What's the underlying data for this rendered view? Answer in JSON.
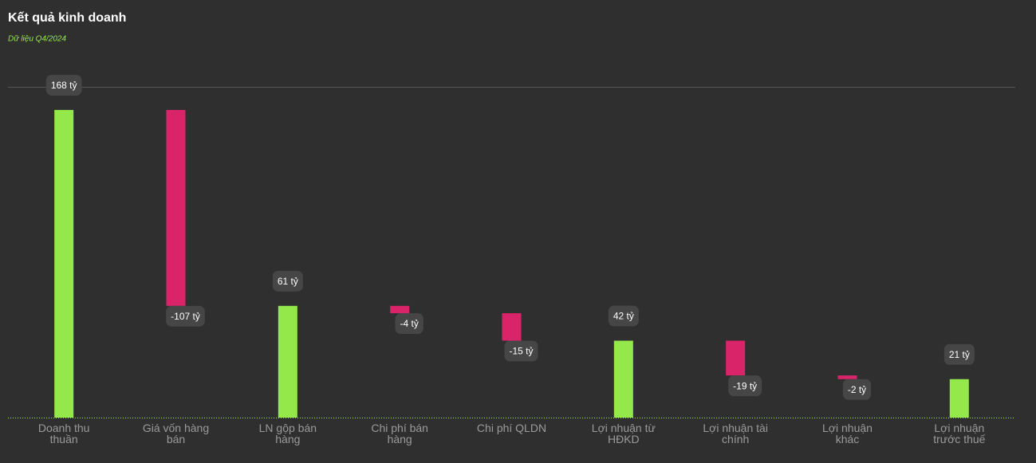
{
  "chart_data": {
    "type": "waterfall",
    "title": "Kết quả kinh doanh",
    "subtitle": "Dữ liệu Q4/2024",
    "categories": [
      "Doanh thu\nthuần",
      "Giá vốn hàng\nbán",
      "LN gộp bán\nhàng",
      "Chi phí bán\nhàng",
      "Chi phí QLDN",
      "Lợi nhuận từ\nHĐKD",
      "Lợi nhuận tài\nchính",
      "Lợi nhuận\nkhác",
      "Lợi nhuận\ntrước thuế"
    ],
    "measure": [
      "total",
      "relative",
      "total",
      "relative",
      "relative",
      "total",
      "relative",
      "relative",
      "total"
    ],
    "values": [
      168,
      -107,
      61,
      -4,
      -15,
      42,
      -19,
      -2,
      21
    ],
    "value_labels": [
      "168 tỷ",
      "-107 tỷ",
      "61 tỷ",
      "-4 tỷ",
      "-15 tỷ",
      "42 tỷ",
      "-19 tỷ",
      "-2 tỷ",
      "21 tỷ"
    ],
    "total_color": "#95e84a",
    "decrease_color": "#d9246a",
    "ylim": [
      0,
      180
    ]
  }
}
